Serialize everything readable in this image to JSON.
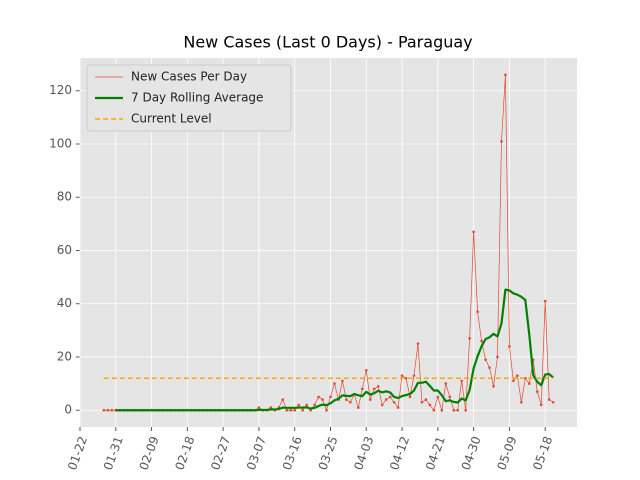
{
  "chart_data": {
    "type": "line",
    "title": "New Cases (Last 0 Days) - Paraguay",
    "x": [
      "01-28",
      "01-29",
      "01-30",
      "01-31",
      "02-01",
      "02-02",
      "02-03",
      "02-04",
      "02-05",
      "02-06",
      "02-07",
      "02-08",
      "02-09",
      "02-10",
      "02-11",
      "02-12",
      "02-13",
      "02-14",
      "02-15",
      "02-16",
      "02-17",
      "02-18",
      "02-19",
      "02-20",
      "02-21",
      "02-22",
      "02-23",
      "02-24",
      "02-25",
      "02-26",
      "02-27",
      "02-28",
      "02-29",
      "03-01",
      "03-02",
      "03-03",
      "03-04",
      "03-05",
      "03-06",
      "03-07",
      "03-08",
      "03-09",
      "03-10",
      "03-11",
      "03-12",
      "03-13",
      "03-14",
      "03-15",
      "03-16",
      "03-17",
      "03-18",
      "03-19",
      "03-20",
      "03-21",
      "03-22",
      "03-23",
      "03-24",
      "03-25",
      "03-26",
      "03-27",
      "03-28",
      "03-29",
      "03-30",
      "03-31",
      "04-01",
      "04-02",
      "04-03",
      "04-04",
      "04-05",
      "04-06",
      "04-07",
      "04-08",
      "04-09",
      "04-10",
      "04-11",
      "04-12",
      "04-13",
      "04-14",
      "04-15",
      "04-16",
      "04-17",
      "04-18",
      "04-19",
      "04-20",
      "04-21",
      "04-22",
      "04-23",
      "04-24",
      "04-25",
      "04-26",
      "04-27",
      "04-28",
      "04-29",
      "04-30",
      "05-01",
      "05-02",
      "05-03",
      "05-04",
      "05-05",
      "05-06",
      "05-07",
      "05-08",
      "05-09",
      "05-10",
      "05-11",
      "05-12",
      "05-13",
      "05-14",
      "05-15",
      "05-16",
      "05-17",
      "05-18",
      "05-19",
      "05-20"
    ],
    "series": [
      {
        "name": "New Cases Per Day",
        "color": "#e24a33",
        "values": [
          0,
          0,
          0,
          0,
          0,
          0,
          0,
          0,
          0,
          0,
          0,
          0,
          0,
          0,
          0,
          0,
          0,
          0,
          0,
          0,
          0,
          0,
          0,
          0,
          0,
          0,
          0,
          0,
          0,
          0,
          0,
          0,
          0,
          0,
          0,
          0,
          0,
          0,
          0,
          1,
          0,
          0,
          1,
          0,
          1,
          4,
          0,
          0,
          0,
          2,
          0,
          2,
          0,
          2,
          5,
          4,
          0,
          5,
          10,
          4,
          11,
          4,
          3,
          6,
          1,
          8,
          15,
          4,
          8,
          9,
          2,
          4,
          5,
          3,
          1,
          13,
          12,
          5,
          13,
          25,
          3,
          4,
          2,
          0,
          5,
          0,
          10,
          5,
          0,
          0,
          11,
          0,
          27,
          67,
          37,
          26,
          19,
          16,
          9,
          20,
          101,
          126,
          24,
          11,
          13,
          3,
          12,
          10,
          19,
          7,
          2,
          41,
          4,
          3
        ]
      },
      {
        "name": "7 Day Rolling Average",
        "color": "#008000",
        "values": [
          null,
          null,
          null,
          0,
          0,
          0,
          0,
          0,
          0,
          0,
          0,
          0,
          0,
          0,
          0,
          0,
          0,
          0,
          0,
          0,
          0,
          0,
          0,
          0,
          0,
          0,
          0,
          0,
          0,
          0,
          0,
          0,
          0,
          0,
          0,
          0,
          0,
          0,
          0,
          0.1,
          0.1,
          0.1,
          0.3,
          0.3,
          0.4,
          1.0,
          0.9,
          0.9,
          0.9,
          1.0,
          1.0,
          1.1,
          0.6,
          0.9,
          1.6,
          2.1,
          1.9,
          2.6,
          3.7,
          4.3,
          5.6,
          5.4,
          5.3,
          6.1,
          5.6,
          5.3,
          6.9,
          5.9,
          6.4,
          7.3,
          6.7,
          7.1,
          6.7,
          5.0,
          4.6,
          5.3,
          5.7,
          6.1,
          7.4,
          10.3,
          10.3,
          10.7,
          9.1,
          7.4,
          7.4,
          5.6,
          3.4,
          3.7,
          3.1,
          2.9,
          4.4,
          3.7,
          7.6,
          15.7,
          20.3,
          24.0,
          26.7,
          27.4,
          28.7,
          27.7,
          32.6,
          45.3,
          45.0,
          43.9,
          43.4,
          42.6,
          41.4,
          28.4,
          13.1,
          10.7,
          9.4,
          13.4,
          13.6,
          12.3
        ]
      },
      {
        "name": "Current Level",
        "color": "#ffa500",
        "value": 12
      }
    ],
    "xlim": [
      "01-22",
      "05-26"
    ],
    "xticks": [
      "01-22",
      "01-31",
      "02-09",
      "02-18",
      "02-27",
      "03-07",
      "03-16",
      "03-25",
      "04-03",
      "04-12",
      "04-21",
      "04-30",
      "05-09",
      "05-18"
    ],
    "ylim": [
      -6.3,
      132.3
    ],
    "yticks": [
      0,
      20,
      40,
      60,
      80,
      100,
      120
    ],
    "grid": true,
    "legend": "upper left"
  }
}
